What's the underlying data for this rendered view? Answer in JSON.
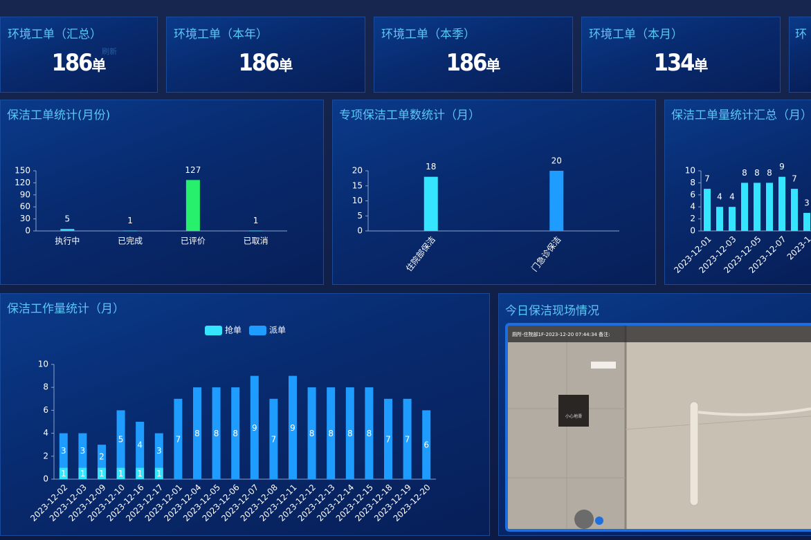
{
  "cards": [
    {
      "title": "环境工单（汇总）",
      "value": "186",
      "unit": "单"
    },
    {
      "title": "环境工单（本年）",
      "value": "186",
      "unit": "单"
    },
    {
      "title": "环境工单（本季）",
      "value": "186",
      "unit": "单"
    },
    {
      "title": "环境工单（本月）",
      "value": "134",
      "unit": "单"
    },
    {
      "title": "环"
    }
  ],
  "refresh": "刷新",
  "chart_data": [
    {
      "type": "bar",
      "title": "保洁工单统计(月份)",
      "categories": [
        "执行中",
        "已完成",
        "已评价",
        "已取消"
      ],
      "values": [
        5,
        1,
        127,
        1
      ],
      "colors": [
        "#35d7f0",
        "#35d7f0",
        "#27f06c",
        "#35d7f0"
      ],
      "ylim": [
        0,
        150
      ],
      "yticks": [
        0,
        30,
        60,
        90,
        120,
        150
      ]
    },
    {
      "type": "bar",
      "title": "专项保洁工单数统计（月）",
      "categories": [
        "住院部保洁",
        "门急诊保洁"
      ],
      "values": [
        18,
        20
      ],
      "colors": [
        "#35e4ff",
        "#1e9cff"
      ],
      "ylim": [
        0,
        20
      ],
      "yticks": [
        0,
        5,
        10,
        15,
        20
      ]
    },
    {
      "type": "bar",
      "title": "保洁工单量统计汇总（月）",
      "categories": [
        "2023-12-01",
        null,
        "2023-12-03",
        null,
        "2023-12-05",
        null,
        "2023-12-07",
        null,
        "2023-1"
      ],
      "values": [
        7,
        4,
        4,
        8,
        8,
        8,
        9,
        7,
        3
      ],
      "colors": [
        "#35e4ff",
        "#35e4ff",
        "#35e4ff",
        "#35e4ff",
        "#35e4ff",
        "#35e4ff",
        "#35e4ff",
        "#35e4ff",
        "#35e4ff"
      ],
      "ylim": [
        0,
        10
      ],
      "yticks": [
        0,
        2,
        4,
        6,
        8,
        10
      ]
    },
    {
      "type": "stacked_bar",
      "title": "保洁工作量统计（月）",
      "categories": [
        "2023-12-02",
        "2023-12-03",
        "2023-12-09",
        "2023-12-10",
        "2023-12-16",
        "2023-12-17",
        "2023-12-01",
        "2023-12-04",
        "2023-12-05",
        "2023-12-06",
        "2023-12-07",
        "2023-12-08",
        "2023-12-11",
        "2023-12-12",
        "2023-12-13",
        "2023-12-14",
        "2023-12-15",
        "2023-12-18",
        "2023-12-19",
        "2023-12-20"
      ],
      "series": [
        {
          "name": "抢单",
          "color": "#35e4ff",
          "values": [
            1,
            1,
            1,
            1,
            1,
            1,
            null,
            null,
            null,
            null,
            null,
            null,
            null,
            null,
            null,
            null,
            null,
            null,
            null,
            null
          ]
        },
        {
          "name": "派单",
          "color": "#1e9cff",
          "values": [
            3,
            3,
            2,
            5,
            4,
            3,
            7,
            8,
            8,
            8,
            9,
            7,
            9,
            8,
            8,
            8,
            8,
            7,
            7,
            6
          ]
        }
      ],
      "ylim": [
        0,
        10
      ],
      "yticks": [
        0,
        2,
        4,
        6,
        8,
        10
      ],
      "legend": "top"
    }
  ],
  "camera": {
    "title": "今日保洁现场情况",
    "overlay": "厕所-住院部1F-2023-12-20 07:44:34 备注:",
    "sign": "小心地滑"
  }
}
